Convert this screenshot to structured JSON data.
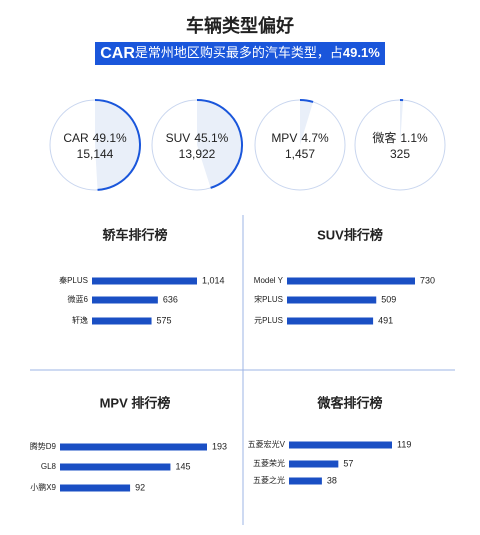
{
  "header": {
    "title": "车辆类型偏好",
    "banner": [
      "CAR",
      "是常州地区购买最多的汽车类型，占",
      "49.1%"
    ]
  },
  "chart_data": [
    {
      "type": "ring",
      "categories": [
        "CAR",
        "SUV",
        "MPV",
        "微客"
      ],
      "values": [
        49.1,
        45.1,
        4.7,
        1.1
      ],
      "value_labels": [
        "49.1%",
        "45.1%",
        "4.7%",
        "1.1%"
      ],
      "counts": [
        15144,
        13922,
        1457,
        325
      ],
      "count_labels": [
        "15,144",
        "13,922",
        "1,457",
        "325"
      ],
      "color": "#1a56db"
    },
    {
      "type": "hbar",
      "title": "轿车排行榜",
      "categories": [
        "秦PLUS",
        "微蓝6",
        "轩逸"
      ],
      "values": [
        1014,
        636,
        575
      ],
      "value_labels": [
        "1,014",
        "636",
        "575"
      ],
      "color": "#1a4fc4"
    },
    {
      "type": "hbar",
      "title": "SUV排行榜",
      "categories": [
        "Model Y",
        "宋PLUS",
        "元PLUS"
      ],
      "values": [
        730,
        509,
        491
      ],
      "color": "#1a4fc4"
    },
    {
      "type": "hbar",
      "title": "MPV 排行榜",
      "categories": [
        "腾势D9",
        "GL8",
        "小鹏X9"
      ],
      "values": [
        193,
        145,
        92
      ],
      "color": "#1a4fc4"
    },
    {
      "type": "hbar",
      "title": "微客排行榜",
      "categories": [
        "五菱宏光V",
        "五菱荣光",
        "五菱之光"
      ],
      "values": [
        119,
        57,
        38
      ],
      "color": "#1a4fc4"
    }
  ]
}
